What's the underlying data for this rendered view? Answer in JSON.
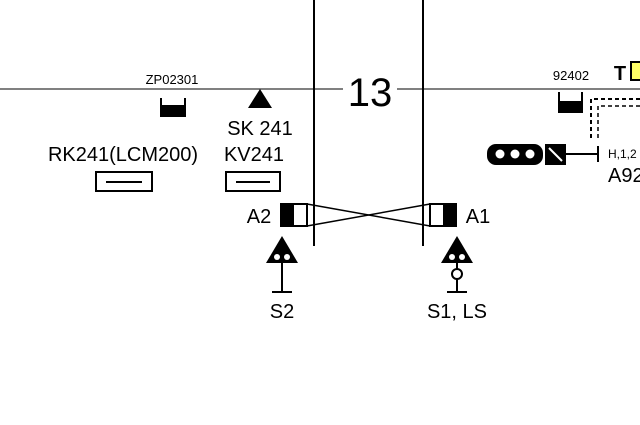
{
  "track_number": "13",
  "labels": {
    "zp_left": "ZP02301",
    "zp_right": "92402",
    "sk": "SK 241",
    "kv": "KV241",
    "rk": "RK241(LCM200)",
    "a2": "A2",
    "a1": "A1",
    "s2": "S2",
    "s1": "S1, LS",
    "t_marker": "T",
    "h_code": "H,1,2",
    "a9_partial": "A92"
  },
  "colors": {
    "line": "#000000",
    "yellow_box": "#ffff66",
    "background": "#ffffff"
  }
}
